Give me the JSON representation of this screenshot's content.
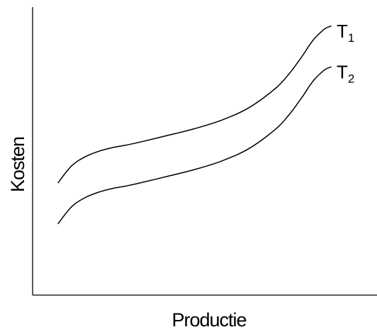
{
  "chart_data": {
    "type": "line",
    "xlabel": "Productie",
    "ylabel": "Kosten",
    "xlim": [
      0,
      100
    ],
    "ylim": [
      0,
      100
    ],
    "grid": false,
    "legend": "none",
    "series": [
      {
        "name": "T",
        "name_subscript": "1",
        "x": [
          0,
          5,
          10,
          15,
          20,
          25,
          30,
          40,
          50,
          60,
          70,
          80,
          85,
          88,
          90,
          92,
          94,
          96,
          98,
          100
        ],
        "y": [
          32,
          39.5,
          43.5,
          45.9,
          47.5,
          48.6,
          49.9,
          52.8,
          55.8,
          59.6,
          65.1,
          73.9,
          80.5,
          85.3,
          88.7,
          92.4,
          95.6,
          98,
          100,
          101
        ]
      },
      {
        "name": "T",
        "name_subscript": "2",
        "x": [
          0,
          5,
          10,
          15,
          20,
          25,
          30,
          40,
          50,
          60,
          70,
          80,
          85,
          88,
          90,
          92,
          94,
          96,
          98,
          100
        ],
        "y": [
          14,
          21.5,
          25.5,
          27.9,
          29.5,
          30.6,
          31.9,
          34.8,
          37.8,
          41.6,
          47.1,
          55.9,
          62.5,
          67.3,
          70.7,
          74.4,
          77.6,
          80,
          82,
          83
        ]
      }
    ]
  }
}
